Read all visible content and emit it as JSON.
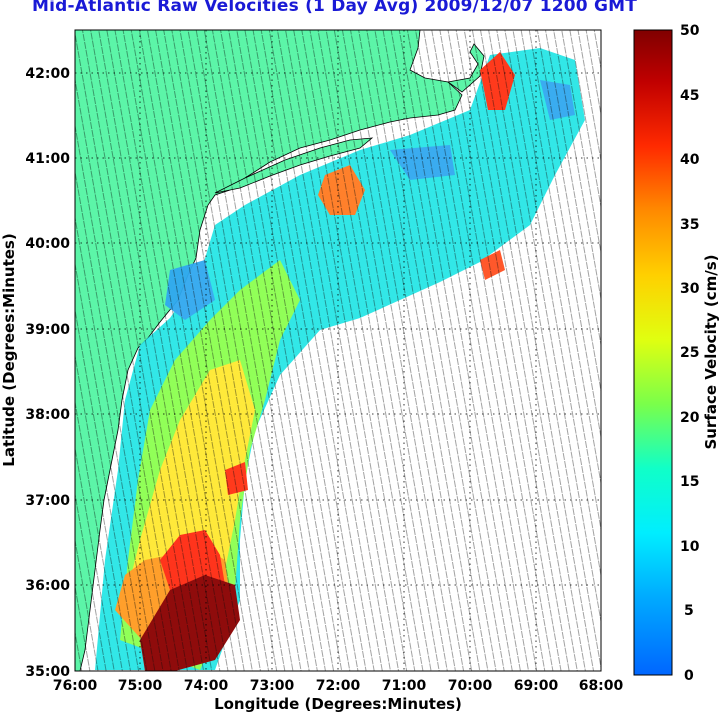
{
  "title": "Mid-Atlantic Raw Velocities (1 Day Avg) 2009/12/07 1200 GMT",
  "xlabel": "Longitude (Degrees:Minutes)",
  "ylabel": "Latitude (Degrees:Minutes)",
  "xticks": [
    "76:00",
    "75:00",
    "74:00",
    "73:00",
    "72:00",
    "71:00",
    "70:00",
    "69:00",
    "68:00"
  ],
  "yticks": [
    "42:00",
    "41:00",
    "40:00",
    "39:00",
    "38:00",
    "37:00",
    "36:00",
    "35:00"
  ],
  "colorbar": {
    "label": "Surface Velocity (cm/s)",
    "ticks": [
      "50",
      "45",
      "40",
      "35",
      "30",
      "25",
      "20",
      "15",
      "10",
      "5",
      "0"
    ],
    "colors": [
      "#0000ff",
      "#00c8ff",
      "#00ffd8",
      "#7fff3a",
      "#ffff00",
      "#ff9b00",
      "#ff2a00",
      "#800000"
    ]
  },
  "colors": {
    "land": "#5cf5a8",
    "ocean": "#ffffff",
    "title": "#1a1ad6"
  }
}
